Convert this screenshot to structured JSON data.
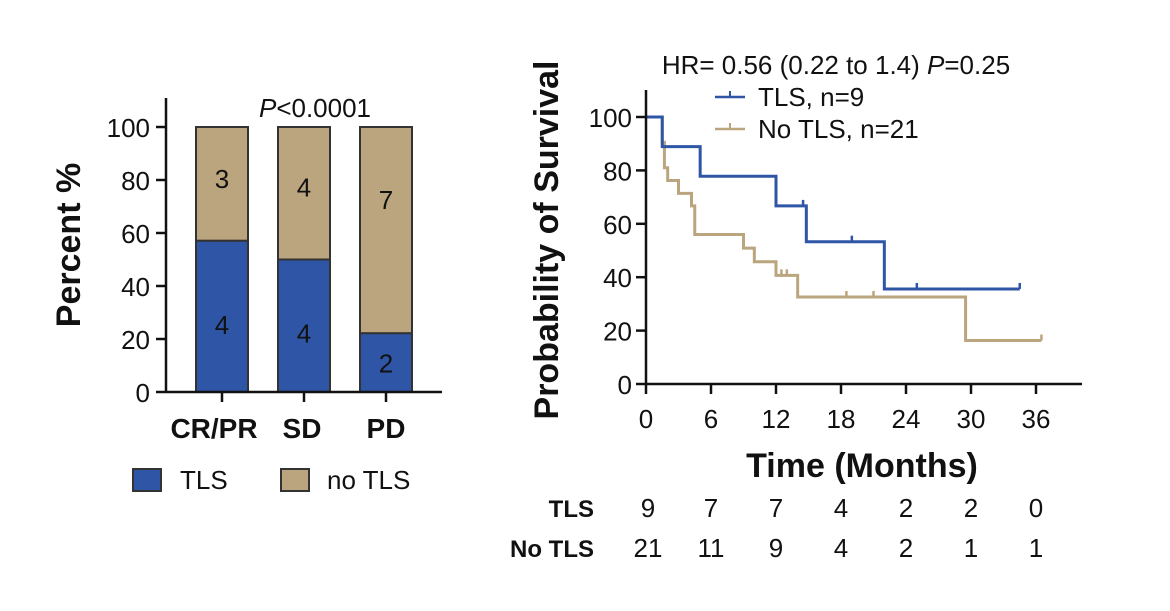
{
  "colors": {
    "tls": "#2f56a6",
    "no_tls": "#bba57e",
    "bar_border": "#333333",
    "axis": "#111111"
  },
  "chart_data": [
    {
      "type": "bar",
      "stacked": true,
      "title": "",
      "annotation": {
        "p_italic": "P",
        "p_rest": "<0.0001"
      },
      "xlabel": "",
      "ylabel": "Percent %",
      "ylim": [
        0,
        110
      ],
      "yticks": [
        0,
        20,
        40,
        60,
        80,
        100
      ],
      "categories": [
        "CR/PR",
        "SD",
        "PD"
      ],
      "series": [
        {
          "name": "TLS",
          "counts": [
            4,
            4,
            2
          ],
          "values": [
            57.1,
            50.0,
            22.2
          ]
        },
        {
          "name": "no TLS",
          "counts": [
            3,
            4,
            7
          ],
          "values": [
            42.9,
            50.0,
            77.8
          ]
        }
      ],
      "legend": {
        "placement": "bottom",
        "entries": [
          "TLS",
          "no TLS"
        ]
      }
    },
    {
      "type": "line",
      "subtype": "kaplan-meier",
      "title": "",
      "annotation": {
        "hr_text": "HR= 0.56 (0.22 to 1.4) ",
        "p_italic": "P",
        "p_rest": "=0.25"
      },
      "xlabel": "Time (Months)",
      "ylabel": "Probability of Survival",
      "xlim": [
        0,
        40
      ],
      "ylim": [
        0,
        110
      ],
      "xticks": [
        0,
        6,
        12,
        18,
        24,
        30,
        36
      ],
      "yticks": [
        0,
        20,
        40,
        60,
        80,
        100
      ],
      "legend": {
        "placement": "top-right",
        "entries": [
          "TLS, n=9",
          "No TLS, n=21"
        ]
      },
      "series": [
        {
          "name": "TLS, n=9",
          "steps": [
            [
              0,
              100
            ],
            [
              1.5,
              88.9
            ],
            [
              5.0,
              77.8
            ],
            [
              12.0,
              66.7
            ],
            [
              14.8,
              53.3
            ],
            [
              22.0,
              35.6
            ],
            [
              34.5,
              35.6
            ]
          ],
          "censored": [
            [
              14.5,
              66.7
            ],
            [
              19.0,
              53.3
            ],
            [
              25.0,
              35.6
            ],
            [
              34.5,
              35.6
            ]
          ]
        },
        {
          "name": "No TLS, n=21",
          "steps": [
            [
              0,
              100
            ],
            [
              1.5,
              90.5
            ],
            [
              1.7,
              81.0
            ],
            [
              2.0,
              76.2
            ],
            [
              3.0,
              71.4
            ],
            [
              4.2,
              66.7
            ],
            [
              4.5,
              56.0
            ],
            [
              9.0,
              50.9
            ],
            [
              10.0,
              45.8
            ],
            [
              12.0,
              40.7
            ],
            [
              14.0,
              32.6
            ],
            [
              29.5,
              16.3
            ],
            [
              36.5,
              16.3
            ]
          ],
          "censored": [
            [
              1.5,
              93.0
            ],
            [
              12.5,
              40.7
            ],
            [
              13.0,
              40.7
            ],
            [
              18.5,
              32.6
            ],
            [
              21.0,
              32.6
            ],
            [
              36.5,
              16.3
            ]
          ]
        }
      ],
      "risk_table": {
        "times": [
          0,
          6,
          12,
          18,
          24,
          30,
          36
        ],
        "rows": [
          {
            "label": "TLS",
            "values": [
              "9",
              "7",
              "7",
              "4",
              "2",
              "2",
              "0"
            ]
          },
          {
            "label": "No TLS",
            "values": [
              "21",
              "11",
              "9",
              "4",
              "2",
              "1",
              "1"
            ]
          }
        ]
      }
    }
  ]
}
